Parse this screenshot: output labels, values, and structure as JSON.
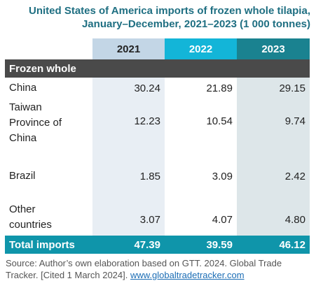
{
  "title_line1": "United States of America imports of frozen whole tilapia,",
  "title_line2": "January–December, 2021–2023 (1 000 tonnes)",
  "section_label": "Frozen whole",
  "source_text": "Source: Author’s own elaboration based on GTT. 2024. Global Trade Tracker. [Cited 1 March 2024]. ",
  "source_link": "www.globaltradetracker.com",
  "colors": {
    "title": "#1f6f82",
    "header_2021": "#c3d6e6",
    "header_2022": "#13b5d8",
    "header_2023": "#1a8290",
    "section_bar": "#4a4a4a",
    "total_bar": "#0f95aa"
  },
  "chart_data": {
    "type": "table",
    "title": "United States of America imports of frozen whole tilapia, January–December, 2021–2023 (1 000 tonnes)",
    "columns": [
      "2021",
      "2022",
      "2023"
    ],
    "rows": [
      {
        "label_lines": [
          "China"
        ],
        "values": [
          "30.24",
          "21.89",
          "29.15"
        ]
      },
      {
        "label_lines": [
          "Taiwan",
          "Province of",
          "China"
        ],
        "values": [
          "12.23",
          "10.54",
          "9.74"
        ]
      },
      {
        "label_lines": [
          "Brazil"
        ],
        "values": [
          "1.85",
          "3.09",
          "2.42"
        ]
      },
      {
        "label_lines": [
          "Other",
          "countries"
        ],
        "values": [
          "3.07",
          "4.07",
          "4.80"
        ]
      }
    ],
    "total": {
      "label": "Total imports",
      "values": [
        "47.39",
        "39.59",
        "46.12"
      ]
    }
  }
}
